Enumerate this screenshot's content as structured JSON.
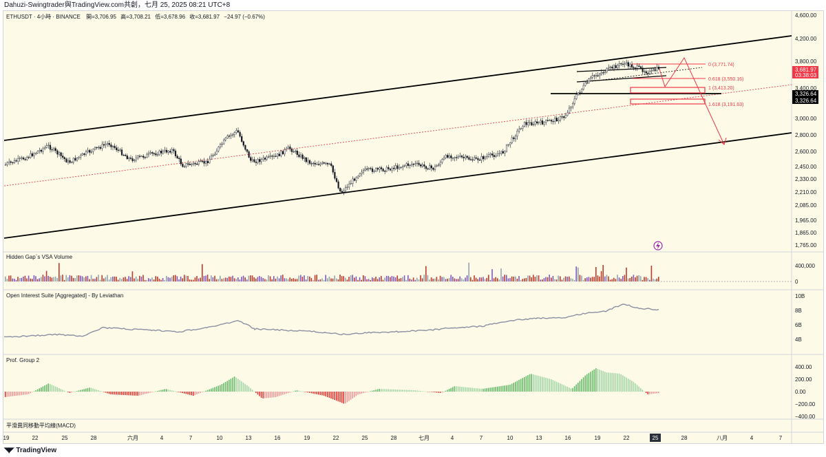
{
  "header": {
    "share_text": "Dahuzi-Swingtrader與TradingView.com共創，七月 25, 2025 08:21 UTC+8"
  },
  "legend": {
    "symbol": "ETHUSDT · 4小時 · BINANCE",
    "open_label": "開=",
    "open": "3,706.95",
    "high_label": "高=",
    "high": "3,708.21",
    "low_label": "低=",
    "low": "3,678.96",
    "close_label": "收=",
    "close": "3,681.97",
    "change": "−24.97 (−0.67%)"
  },
  "panes": {
    "volume_title": "Hidden Gap`s VSA Volume",
    "oi_title": "Open Interest Suite [Aggregated] - By Leviathan",
    "prof_title": "Prof. Group 2",
    "macd_title": "平滑異同移動平均線(MACD)"
  },
  "price_axis": [
    "4,600.00",
    "4,200.00",
    "3,800.00",
    "3,400.00",
    "3,000.00",
    "2,800.00",
    "2,600.00",
    "2,450.00",
    "2,330.00",
    "2,210.00",
    "2,085.00",
    "1,965.00",
    "1,865.00",
    "1,765.00"
  ],
  "volume_axis": [
    "400,000",
    "0"
  ],
  "oi_axis": [
    "10B",
    "8B",
    "6B",
    "4B"
  ],
  "prof_axis": [
    "400.00",
    "200.00",
    "0.00",
    "−200.00",
    "−400.00"
  ],
  "price_tags": {
    "last_price": "3,681.97",
    "countdown": "03:38:03",
    "level_a": "3,326.64",
    "level_b": "3,326.64"
  },
  "fib_labels": {
    "f0": "0 (3,771.74)",
    "f0618": "0.618 (3,550.16)",
    "f1": "1 (3,413.20)",
    "f1618": "1.618 (3,191.63)"
  },
  "time_axis": [
    "19",
    "22",
    "25",
    "28",
    "六月",
    "4",
    "7",
    "10",
    "13",
    "16",
    "19",
    "22",
    "25",
    "28",
    "七月",
    "4",
    "7",
    "10",
    "13",
    "16",
    "19",
    "22",
    "25",
    "28",
    "八月",
    "4",
    "7"
  ],
  "time_axis_highlight": "25",
  "footer": {
    "brand": "TradingView"
  },
  "colors": {
    "background": "#fdfbe8",
    "up": "#131722",
    "down": "#131722",
    "fib": "#f23645",
    "channel": "#000000",
    "prof_up": "#4caf50",
    "prof_down": "#f23645"
  },
  "icons": {
    "replay_icon": "lightning-circle-icon",
    "logo_icon": "tv-logo-icon"
  }
}
